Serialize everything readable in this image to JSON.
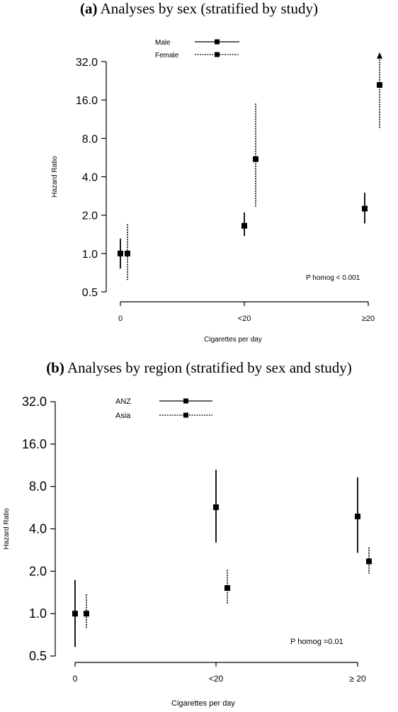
{
  "chart_data": [
    {
      "type": "scatter",
      "panel_label": "(a)",
      "title": "Analyses by sex (stratified by study)",
      "xlabel": "Cigarettes per day",
      "ylabel": "Hazard Ratio",
      "categories": [
        "0",
        "<20",
        "≥20"
      ],
      "yscale": "log",
      "ylim": [
        0.5,
        32.0
      ],
      "yticks": [
        "0.5",
        "1.0",
        "2.0",
        "4.0",
        "8.0",
        "16.0",
        "32.0"
      ],
      "grid": false,
      "legend_position": "top-left",
      "annotation": "P homog < 0.001",
      "series": [
        {
          "name": "Male",
          "line_style": "solid",
          "points": [
            {
              "category": "0",
              "estimate": 1.0,
              "lower": 0.76,
              "upper": 1.31
            },
            {
              "category": "<20",
              "estimate": 1.65,
              "lower": 1.37,
              "upper": 2.1
            },
            {
              "category": "≥20",
              "estimate": 2.25,
              "lower": 1.72,
              "upper": 3.0
            }
          ]
        },
        {
          "name": "Female",
          "line_style": "dotted",
          "points": [
            {
              "category": "0",
              "estimate": 1.0,
              "lower": 0.62,
              "upper": 1.7
            },
            {
              "category": "<20",
              "estimate": 5.5,
              "lower": 2.3,
              "upper": 15.0
            },
            {
              "category": "≥20",
              "estimate": 21.0,
              "lower": 9.5,
              "upper": 36.0,
              "upper_arrow": true
            }
          ]
        }
      ]
    },
    {
      "type": "scatter",
      "panel_label": "(b)",
      "title": "Analyses by region (stratified by sex and study)",
      "xlabel": "Cigarettes per day",
      "ylabel": "Hazard Ratio",
      "categories": [
        "0",
        "<20",
        "≥ 20"
      ],
      "yscale": "log",
      "ylim": [
        0.5,
        32.0
      ],
      "yticks": [
        "0.5",
        "1.0",
        "2.0",
        "4.0",
        "8.0",
        "16.0",
        "32.0"
      ],
      "grid": false,
      "legend_position": "top-left",
      "annotation": "P homog =0.01",
      "series": [
        {
          "name": "ANZ",
          "line_style": "solid",
          "points": [
            {
              "category": "0",
              "estimate": 1.0,
              "lower": 0.58,
              "upper": 1.73
            },
            {
              "category": "<20",
              "estimate": 5.7,
              "lower": 3.2,
              "upper": 10.5
            },
            {
              "category": "≥ 20",
              "estimate": 4.9,
              "lower": 2.7,
              "upper": 9.3
            }
          ]
        },
        {
          "name": "Asia",
          "line_style": "dotted",
          "points": [
            {
              "category": "0",
              "estimate": 1.0,
              "lower": 0.78,
              "upper": 1.37
            },
            {
              "category": "<20",
              "estimate": 1.52,
              "lower": 1.18,
              "upper": 2.05
            },
            {
              "category": "≥ 20",
              "estimate": 2.35,
              "lower": 1.93,
              "upper": 2.95
            }
          ]
        }
      ]
    }
  ]
}
